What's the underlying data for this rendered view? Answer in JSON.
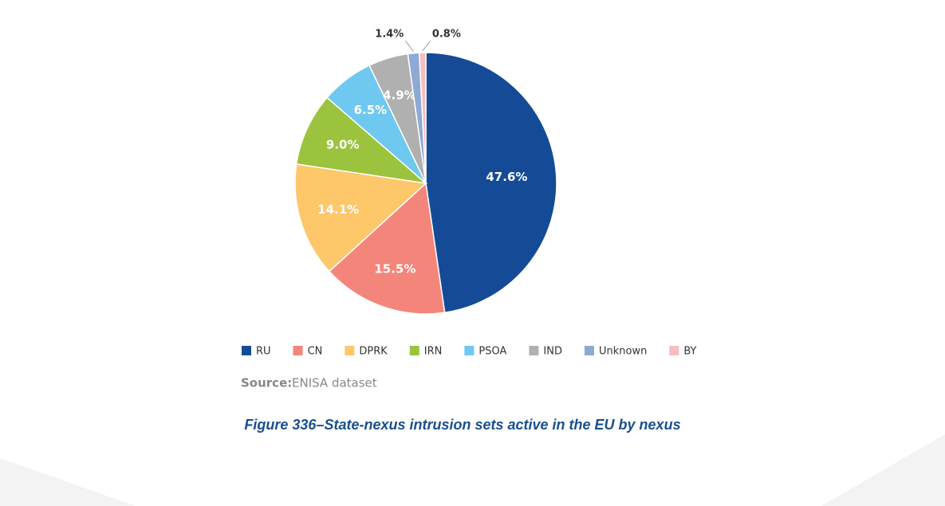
{
  "chart_data": {
    "type": "pie",
    "categories": [
      "RU",
      "CN",
      "DPRK",
      "IRN",
      "PSOA",
      "IND",
      "Unknown",
      "BY"
    ],
    "values": [
      47.6,
      15.5,
      14.1,
      9.0,
      6.5,
      4.9,
      1.4,
      0.8
    ],
    "value_labels": [
      "47.6%",
      "15.5%",
      "14.1%",
      "9.0%",
      "6.5%",
      "4.9%",
      "1.4%",
      "0.8%"
    ],
    "colors": [
      "#154b96",
      "#f4857a",
      "#fdc76a",
      "#9bc33e",
      "#6fc8ef",
      "#b0b0b0",
      "#8ea9d4",
      "#f8bcbf"
    ],
    "legend": "bottom"
  },
  "source": {
    "label": "Source:",
    "text": "ENISA dataset"
  },
  "caption": "Figure 336–State-nexus intrusion sets active in the EU by nexus"
}
